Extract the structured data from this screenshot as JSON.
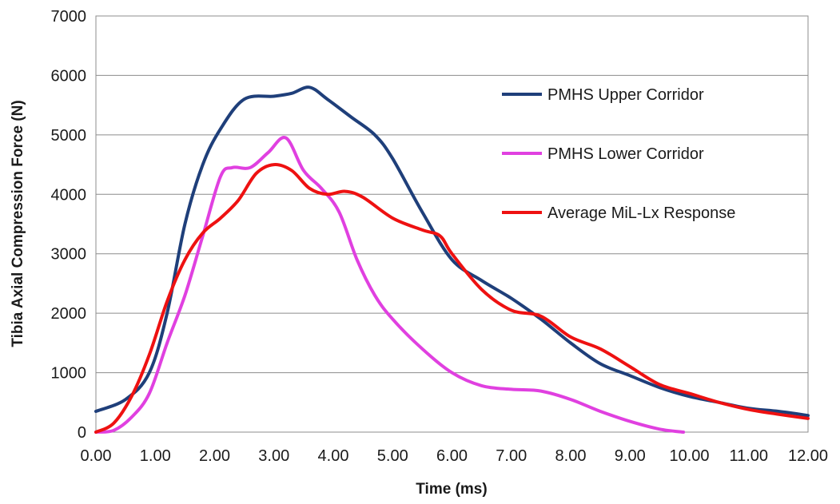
{
  "chart_data": {
    "type": "line",
    "title": "",
    "xlabel": "Time (ms)",
    "ylabel": "Tibia Axial Compression Force (N)",
    "xlim": [
      0,
      12
    ],
    "ylim": [
      0,
      7000
    ],
    "x_ticks": [
      0,
      1,
      2,
      3,
      4,
      5,
      6,
      7,
      8,
      9,
      10,
      11,
      12
    ],
    "x_tick_labels": [
      "0.00",
      "1.00",
      "2.00",
      "3.00",
      "4.00",
      "5.00",
      "6.00",
      "7.00",
      "8.00",
      "9.00",
      "10.00",
      "11.00",
      "12.00"
    ],
    "y_ticks": [
      0,
      1000,
      2000,
      3000,
      4000,
      5000,
      6000,
      7000
    ],
    "y_tick_labels": [
      "0",
      "1000",
      "2000",
      "3000",
      "4000",
      "5000",
      "6000",
      "7000"
    ],
    "grid": "horizontal",
    "legend_position": "top-right",
    "series": [
      {
        "name": "PMHS Upper Corridor",
        "color": "#1f3f7a",
        "x": [
          0,
          0.5,
          0.9,
          1.2,
          1.5,
          1.8,
          2.1,
          2.5,
          3.0,
          3.3,
          3.6,
          3.9,
          4.3,
          4.7,
          5.0,
          5.5,
          6.0,
          6.5,
          7.0,
          7.5,
          8.0,
          8.5,
          9.0,
          9.5,
          10.0,
          10.5,
          11.0,
          11.5,
          12.0
        ],
        "y": [
          350,
          550,
          1000,
          2000,
          3500,
          4500,
          5100,
          5600,
          5650,
          5700,
          5800,
          5600,
          5300,
          5000,
          4600,
          3700,
          2900,
          2550,
          2250,
          1900,
          1500,
          1150,
          950,
          750,
          600,
          500,
          400,
          350,
          280
        ]
      },
      {
        "name": "PMHS Lower Corridor",
        "color": "#e040e0",
        "x": [
          0,
          0.3,
          0.6,
          0.9,
          1.2,
          1.5,
          1.8,
          2.1,
          2.3,
          2.6,
          2.9,
          3.2,
          3.5,
          3.8,
          4.1,
          4.4,
          4.7,
          5.0,
          5.5,
          6.0,
          6.5,
          7.0,
          7.5,
          8.0,
          8.5,
          9.0,
          9.5,
          9.9
        ],
        "y": [
          0,
          30,
          250,
          650,
          1500,
          2300,
          3300,
          4300,
          4450,
          4450,
          4700,
          4950,
          4400,
          4100,
          3700,
          2900,
          2300,
          1900,
          1400,
          1000,
          780,
          720,
          690,
          550,
          350,
          180,
          50,
          0
        ]
      },
      {
        "name": "Average MiL-Lx Response",
        "color": "#ee1111",
        "x": [
          0,
          0.3,
          0.6,
          0.9,
          1.2,
          1.5,
          1.8,
          2.1,
          2.4,
          2.7,
          3.0,
          3.3,
          3.6,
          3.9,
          4.2,
          4.5,
          5.0,
          5.5,
          5.8,
          6.0,
          6.5,
          7.0,
          7.5,
          8.0,
          8.5,
          9.0,
          9.5,
          10.0,
          10.5,
          11.0,
          11.5,
          12.0
        ],
        "y": [
          0,
          150,
          600,
          1300,
          2200,
          2900,
          3350,
          3600,
          3900,
          4350,
          4500,
          4400,
          4100,
          4000,
          4050,
          3950,
          3600,
          3400,
          3300,
          3000,
          2400,
          2050,
          1950,
          1600,
          1400,
          1100,
          800,
          650,
          500,
          380,
          300,
          230
        ]
      }
    ]
  }
}
